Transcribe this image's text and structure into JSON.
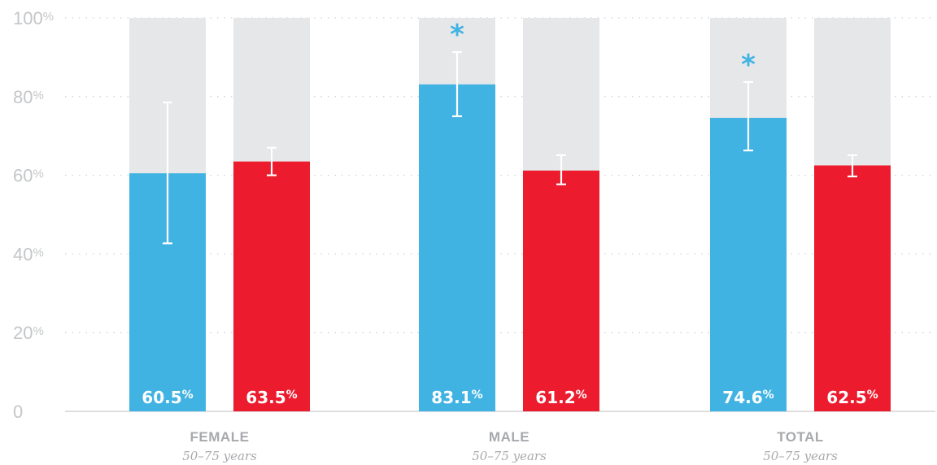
{
  "chart_data": {
    "type": "bar",
    "ylim": [
      0,
      100
    ],
    "y_ticks": [
      {
        "value": 0,
        "label": "0",
        "suffix": ""
      },
      {
        "value": 20,
        "label": "20",
        "suffix": "%"
      },
      {
        "value": 40,
        "label": "40",
        "suffix": "%"
      },
      {
        "value": 60,
        "label": "60",
        "suffix": "%"
      },
      {
        "value": 80,
        "label": "80",
        "suffix": "%"
      },
      {
        "value": 100,
        "label": "100",
        "suffix": "%"
      }
    ],
    "grid": true,
    "categories": [
      {
        "label": "FEMALE",
        "sublabel": "50–75 years"
      },
      {
        "label": "MALE",
        "sublabel": "50–75 years"
      },
      {
        "label": "TOTAL",
        "sublabel": "50–75 years"
      }
    ],
    "series": [
      {
        "color": "#41b3e3",
        "values": [
          60.5,
          83.1,
          74.6
        ],
        "labels": [
          "60.5",
          "83.1",
          "74.6"
        ],
        "error_low": [
          42.7,
          75.0,
          66.3
        ],
        "error_high": [
          78.5,
          91.3,
          83.7
        ],
        "significant": [
          false,
          true,
          true
        ]
      },
      {
        "color": "#ec1c2e",
        "values": [
          63.5,
          61.2,
          62.5
        ],
        "labels": [
          "63.5",
          "61.2",
          "62.5"
        ],
        "error_low": [
          60.0,
          57.7,
          59.7
        ],
        "error_high": [
          67.0,
          65.1,
          65.1
        ],
        "significant": [
          false,
          false,
          false
        ]
      }
    ],
    "value_suffix": "%",
    "significance_marker": "*",
    "background_bar_color": "#e6e7e8"
  }
}
